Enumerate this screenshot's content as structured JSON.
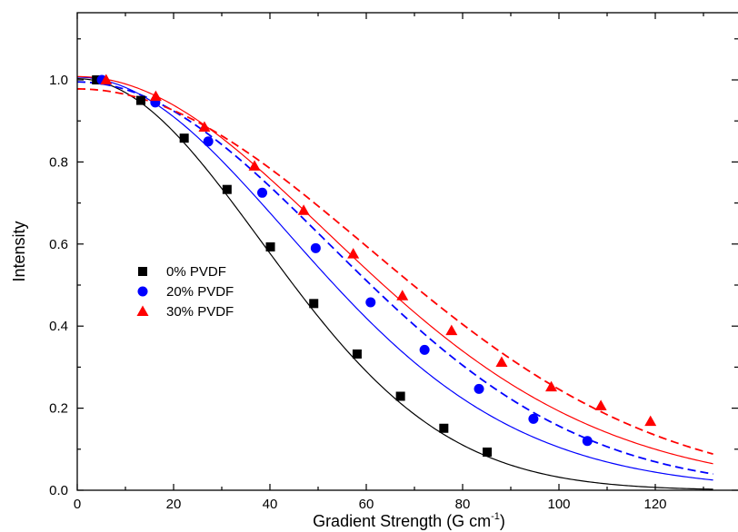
{
  "chart_data": {
    "type": "scatter",
    "xlabel": "Gradient Strength (G cm",
    "xlabel_sup": "-1",
    "xlabel_close": ")",
    "ylabel": "Intensity",
    "xlim": [
      0,
      130
    ],
    "ylim": [
      0,
      1.1
    ],
    "xticks": [
      "0",
      "20",
      "40",
      "60",
      "80",
      "100",
      "120"
    ],
    "yticks": [
      "0.0",
      "0.2",
      "0.4",
      "0.6",
      "0.8",
      "1.0"
    ],
    "legend_position": "left-middle",
    "series": [
      {
        "name": "0% PVDF",
        "color": "#000000",
        "marker": "square",
        "x": [
          4,
          13.2,
          22.2,
          31.1,
          40.1,
          49.1,
          58.1,
          67.1,
          76.1,
          85.1
        ],
        "y": [
          1.0,
          0.95,
          0.858,
          0.733,
          0.593,
          0.455,
          0.332,
          0.229,
          0.151,
          0.093
        ],
        "fit_solid": {
          "a": 1.003,
          "D": 0.000345,
          "beta": 0
        },
        "fit_dashed": null
      },
      {
        "name": "20% PVDF",
        "color": "#0000ff",
        "marker": "circle",
        "x": [
          5.1,
          16.2,
          27.2,
          38.4,
          49.5,
          60.9,
          72.1,
          83.4,
          94.7,
          105.9
        ],
        "y": [
          1.0,
          0.945,
          0.85,
          0.725,
          0.59,
          0.458,
          0.342,
          0.247,
          0.174,
          0.12
        ],
        "fit_solid": {
          "a": 1.0067,
          "D": 0.000245,
          "beta": 0.5
        },
        "fit_dashed": {
          "a": 0.995,
          "D": 0.000185,
          "beta": 0
        }
      },
      {
        "name": "30% PVDF",
        "color": "#ff0000",
        "marker": "triangle",
        "x": [
          6,
          16.3,
          26.4,
          36.8,
          47,
          57.3,
          67.5,
          77.7,
          88.1,
          98.4,
          108.7,
          119
        ],
        "y": [
          1.0,
          0.96,
          0.885,
          0.79,
          0.682,
          0.576,
          0.474,
          0.389,
          0.312,
          0.252,
          0.206,
          0.168
        ],
        "fit_solid": {
          "a": 1.008,
          "D": 0.000185,
          "beta": 0.6
        },
        "fit_dashed": {
          "a": 0.978,
          "D": 0.000138,
          "beta": 0
        }
      }
    ]
  }
}
